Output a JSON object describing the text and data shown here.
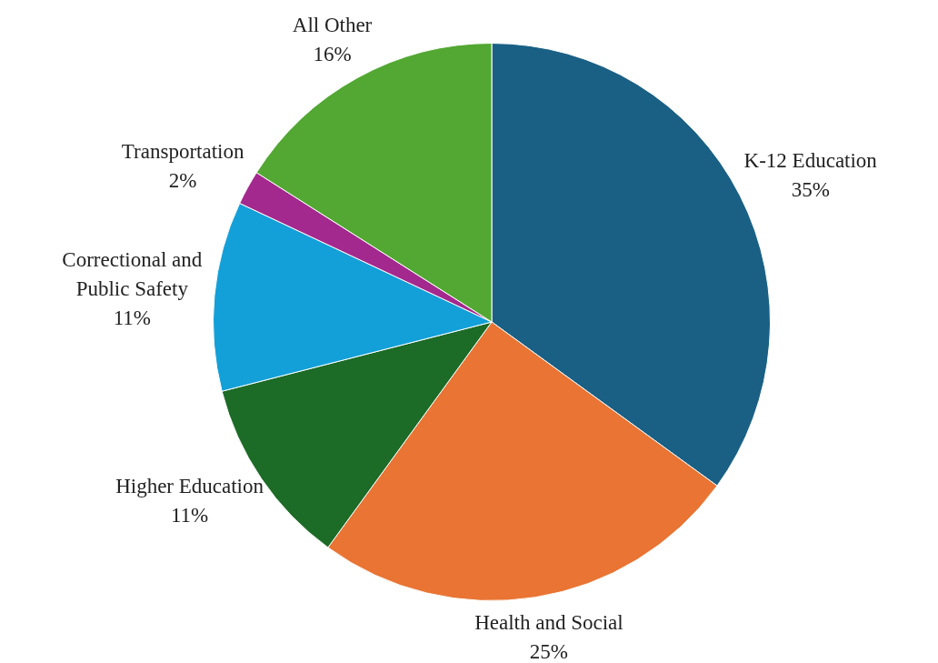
{
  "chart_data": {
    "type": "pie",
    "categories": [
      "K-12 Education",
      "Health and Social",
      "Higher Education",
      "Correctional and Public Safety",
      "Transportation",
      "All Other"
    ],
    "values": [
      35,
      25,
      11,
      11,
      2,
      16
    ],
    "colors": [
      "#1a6085",
      "#e97433",
      "#1c6b27",
      "#13a0d8",
      "#a4298f",
      "#52a832"
    ],
    "value_labels": [
      "35%",
      "25%",
      "11%",
      "11%",
      "2%",
      "16%"
    ],
    "legend": false
  }
}
